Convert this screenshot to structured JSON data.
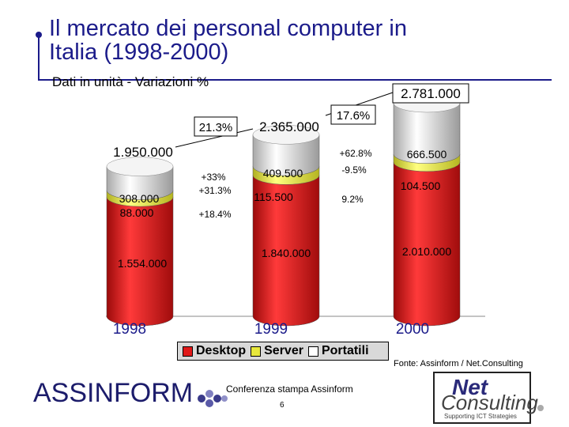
{
  "title": {
    "line1": "Il mercato dei personal computer in",
    "line2": "Italia (1998-2000)"
  },
  "subtitle": "Dati in unità - Variazioni %",
  "colors": {
    "desktop": "#e01818",
    "server": "#e8e83c",
    "portatili": "#e8e8e8",
    "title": "#1b1b8a"
  },
  "chart_data": {
    "type": "bar",
    "stacked": true,
    "categories": [
      "1998",
      "1999",
      "2000"
    ],
    "series": [
      {
        "name": "Desktop",
        "values": [
          1554000,
          1840000,
          2010000
        ],
        "labels": [
          "1.554.000",
          "1.840.000",
          "2.010.000"
        ]
      },
      {
        "name": "Server",
        "values": [
          88000,
          115500,
          104500
        ],
        "labels": [
          "88.000",
          "115.500",
          "104.500"
        ]
      },
      {
        "name": "Portatili",
        "values": [
          308000,
          409500,
          666500
        ],
        "labels": [
          "308.000",
          "409.500",
          "666.500"
        ]
      }
    ],
    "totals": [
      1950000,
      2365000,
      2781000
    ],
    "total_labels": [
      "1.950.000",
      "2.365.000",
      "2.781.000"
    ],
    "total_changes": [
      "21.3%",
      "17.6%"
    ],
    "segment_changes": {
      "1998-1999": {
        "portatili": "+33%",
        "server": "+31.3%",
        "desktop": "+18.4%"
      },
      "1999-2000": {
        "portatili": "+62.8%",
        "server": "-9.5%",
        "desktop": "9.2%"
      }
    },
    "legend": [
      "Desktop",
      "Server",
      "Portatili"
    ],
    "legend_position": "bottom",
    "ylim": [
      0,
      2781000
    ]
  },
  "source": "Fonte: Assinform / Net.Consulting",
  "footer": {
    "event": "Conferenza stampa Assinform",
    "page": "6"
  },
  "logos": {
    "left": "ASSINFORM",
    "right_line1": "Net",
    "right_line2": "Consulting",
    "right_tagline": "Supporting ICT Strategies"
  }
}
